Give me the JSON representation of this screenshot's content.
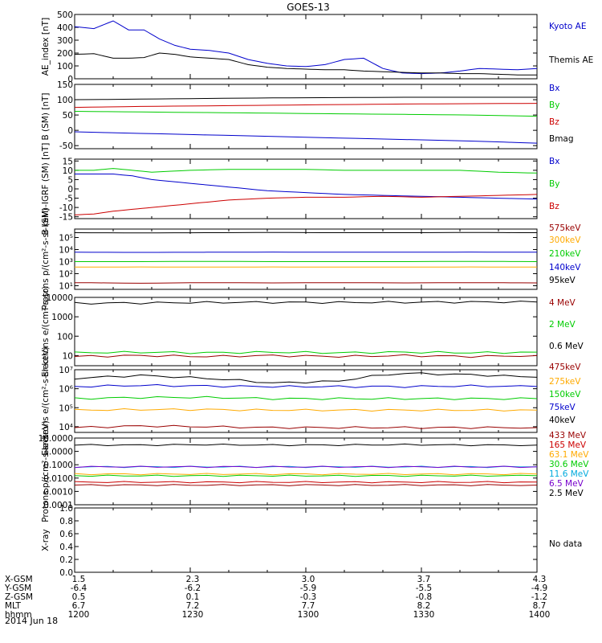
{
  "title": "GOES-13",
  "date_label": "2014 Jun 18",
  "no_data_label": "No data",
  "colors": {
    "black": "#000000",
    "blue": "#0000cc",
    "red": "#cc0000",
    "green": "#00cc00",
    "orange": "#ffaa00",
    "cyan": "#00aadd",
    "yellow": "#dddd00",
    "purple": "#7700cc",
    "darkred": "#990000"
  },
  "orbit": {
    "labels": [
      "X-GSM",
      "Y-GSM",
      "Z-GSM",
      "MLT",
      "hhmm"
    ],
    "rows": [
      [
        "1.5",
        "2.3",
        "3.0",
        "3.7",
        "4.3"
      ],
      [
        "-6.4",
        "-6.2",
        "-5.9",
        "-5.5",
        "-4.9"
      ],
      [
        "0.5",
        "0.1",
        "-0.3",
        "-0.8",
        "-1.2"
      ],
      [
        "6.7",
        "7.2",
        "7.7",
        "8.2",
        "8.7"
      ],
      [
        "1200",
        "1230",
        "1300",
        "1330",
        "1400"
      ]
    ]
  },
  "chart_data": [
    {
      "type": "line",
      "ylabel": "AE_index [nT]",
      "ylim": [
        0,
        500
      ],
      "yticks": [
        "0",
        "100",
        "200",
        "300",
        "400",
        "500"
      ],
      "x": [
        0,
        5,
        10,
        14,
        18,
        22,
        26,
        30,
        35,
        40,
        45,
        50,
        55,
        60,
        65,
        70,
        75,
        80,
        85,
        90,
        95,
        100,
        105,
        110,
        115,
        120
      ],
      "series": [
        {
          "name": "Kyoto AE",
          "color": "blue",
          "values": [
            405,
            390,
            450,
            380,
            380,
            310,
            260,
            230,
            220,
            200,
            150,
            120,
            100,
            95,
            110,
            150,
            160,
            80,
            45,
            40,
            45,
            60,
            80,
            75,
            70,
            80
          ]
        },
        {
          "name": "Themis AE",
          "color": "black",
          "values": [
            190,
            195,
            160,
            160,
            165,
            200,
            190,
            170,
            160,
            150,
            110,
            90,
            80,
            75,
            70,
            70,
            60,
            55,
            50,
            45,
            45,
            40,
            40,
            35,
            30,
            30
          ]
        }
      ]
    },
    {
      "type": "line",
      "ylabel": "B (SM) [nT]",
      "ylim": [
        -60,
        150
      ],
      "yticks": [
        "-50",
        "0",
        "50",
        "100",
        "150"
      ],
      "series": [
        {
          "name": "Bx",
          "color": "blue",
          "values": [
            -5,
            -10,
            -15,
            -20,
            -25,
            -30,
            -35,
            -42
          ]
        },
        {
          "name": "By",
          "color": "green",
          "values": [
            62,
            60,
            58,
            56,
            54,
            52,
            50,
            46
          ]
        },
        {
          "name": "Bz",
          "color": "red",
          "values": [
            75,
            78,
            80,
            82,
            84,
            86,
            87,
            88
          ]
        },
        {
          "name": "Bmag",
          "color": "black",
          "values": [
            100,
            102,
            104,
            106,
            107,
            108,
            108,
            108
          ]
        }
      ]
    },
    {
      "type": "line",
      "ylabel": "B (SM)-IGRF (SM) [nT]",
      "ylim": [
        -16,
        16
      ],
      "yticks": [
        "-15",
        "-10",
        "-5",
        "0",
        "5",
        "10",
        "15"
      ],
      "x": [
        0,
        5,
        10,
        15,
        20,
        30,
        40,
        50,
        60,
        70,
        80,
        90,
        100,
        110,
        120
      ],
      "series": [
        {
          "name": "Bx",
          "color": "blue",
          "values": [
            8,
            8,
            8,
            7,
            5,
            3,
            1,
            -1,
            -2,
            -3,
            -3.5,
            -4,
            -4.5,
            -5,
            -5.5
          ]
        },
        {
          "name": "By",
          "color": "green",
          "values": [
            10,
            10,
            11,
            10,
            9,
            10,
            10.5,
            10.5,
            10.5,
            10,
            10,
            10,
            10,
            9,
            8.5
          ]
        },
        {
          "name": "Bz",
          "color": "red",
          "values": [
            -14,
            -13.5,
            -12,
            -11,
            -10,
            -8,
            -6,
            -5,
            -4.5,
            -4.5,
            -4,
            -4.5,
            -4,
            -3.5,
            -3
          ]
        }
      ]
    },
    {
      "type": "line",
      "log": true,
      "ylabel": "Protons p/(cm²-s-sr-keV)",
      "ylim": [
        5,
        500000
      ],
      "yticks": [
        "10¹",
        "10²",
        "10³",
        "10⁴",
        "10⁵"
      ],
      "series": [
        {
          "name": "575keV",
          "color": "darkred",
          "values": [
            18,
            16,
            18,
            17,
            18,
            17,
            18,
            17
          ]
        },
        {
          "name": "300keV",
          "color": "orange",
          "values": [
            350,
            360,
            350,
            360,
            350,
            350,
            360,
            350
          ]
        },
        {
          "name": "210keV",
          "color": "green",
          "values": [
            1000,
            1000,
            1050,
            1000,
            1000,
            1000,
            1050,
            1000
          ]
        },
        {
          "name": "140keV",
          "color": "blue",
          "values": [
            6000,
            5800,
            6000,
            6200,
            6000,
            6000,
            6200,
            6000
          ]
        },
        {
          "name": "95keV",
          "color": "black",
          "values": [
            250000,
            240000,
            250000,
            260000,
            250000,
            250000,
            260000,
            250000
          ]
        }
      ]
    },
    {
      "type": "line",
      "log": true,
      "ylabel": "Electrons e/(cm²-s-sr)",
      "ylim": [
        3,
        10000
      ],
      "yticks": [
        "10",
        "100",
        "1000",
        "10000"
      ],
      "series": [
        {
          "name": "4 MeV",
          "color": "darkred",
          "values": [
            9,
            10,
            9,
            10,
            9,
            10,
            9,
            10
          ]
        },
        {
          "name": "2 MeV",
          "color": "green",
          "values": [
            14,
            15,
            14,
            15,
            14,
            15,
            14,
            15
          ]
        },
        {
          "name": "0.6 MeV",
          "color": "black",
          "values": [
            5000,
            5200,
            5500,
            5600,
            5500,
            5600,
            5800,
            5800
          ]
        }
      ]
    },
    {
      "type": "line",
      "log": true,
      "ylabel": "Electrons e/(cm²-s-sr-keV)",
      "ylim": [
        5000,
        10000000
      ],
      "yticks": [
        "10⁴",
        "10⁵",
        "10⁶",
        "10⁷"
      ],
      "series": [
        {
          "name": "475keV",
          "color": "darkred",
          "values": [
            9000,
            11000,
            10000,
            9000,
            9000,
            9000,
            9000,
            9000
          ]
        },
        {
          "name": "275keV",
          "color": "orange",
          "values": [
            75000,
            80000,
            80000,
            75000,
            75000,
            75000,
            75000,
            75000
          ]
        },
        {
          "name": "150keV",
          "color": "green",
          "values": [
            300000,
            350000,
            350000,
            300000,
            300000,
            300000,
            300000,
            300000
          ]
        },
        {
          "name": "75keV",
          "color": "blue",
          "values": [
            1300000,
            1500000,
            1400000,
            1300000,
            1300000,
            1300000,
            1400000,
            1300000
          ]
        },
        {
          "name": "40keV",
          "color": "black",
          "values": [
            3500000,
            5000000,
            3500000,
            2000000,
            2500000,
            6500000,
            5500000,
            4000000
          ]
        }
      ]
    },
    {
      "type": "line",
      "log": true,
      "ylabel": "Protons p/(cm²-s-sr-keV)",
      "ylim": [
        0.0001,
        10
      ],
      "yticks": [
        "0.0001",
        "0.0010",
        "0.0100",
        "0.1000",
        "1.0000",
        "10.0000"
      ],
      "series": [
        {
          "name": "433 MeV",
          "color": "darkred",
          "values": [
            0.003,
            0.003,
            0.003,
            0.003,
            0.003,
            0.003,
            0.003,
            0.003
          ]
        },
        {
          "name": "165 MeV",
          "color": "red",
          "values": [
            0.005,
            0.005,
            0.005,
            0.005,
            0.005,
            0.005,
            0.005,
            0.005
          ]
        },
        {
          "name": "63.1 MeV",
          "color": "orange",
          "values": [
            0.02,
            0.02,
            0.02,
            0.02,
            0.02,
            0.02,
            0.02,
            0.02
          ]
        },
        {
          "name": "30.6 MeV",
          "color": "green",
          "values": [
            0.015,
            0.015,
            0.015,
            0.015,
            0.015,
            0.015,
            0.015,
            0.015
          ]
        },
        {
          "name": "11.6 MeV",
          "color": "cyan",
          "values": [
            0.07,
            0.07,
            0.07,
            0.07,
            0.07,
            0.07,
            0.07,
            0.07
          ]
        },
        {
          "name": "6.5 MeV",
          "color": "purple",
          "values": [
            0.07,
            0.07,
            0.07,
            0.07,
            0.07,
            0.07,
            0.07,
            0.07
          ]
        },
        {
          "name": "2.5 MeV",
          "color": "black",
          "values": [
            3,
            3,
            3.2,
            3,
            3,
            3.2,
            3,
            3
          ]
        }
      ]
    },
    {
      "type": "line",
      "ylabel": "X-ray",
      "ylim": [
        0,
        1
      ],
      "yticks": [
        "0.0",
        "0.2",
        "0.4",
        "0.6",
        "0.8",
        "1.0"
      ],
      "series": []
    }
  ]
}
